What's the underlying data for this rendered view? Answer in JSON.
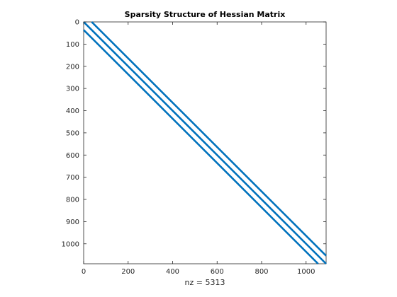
{
  "chart_data": {
    "type": "scatter",
    "title": "Sparsity Structure of Hessian Matrix",
    "xlabel": "nz = 5313",
    "ylabel": "",
    "xlim": [
      0,
      1090
    ],
    "ylim": [
      1090,
      0
    ],
    "y_axis_reversed": true,
    "x_ticks": [
      0,
      200,
      400,
      600,
      800,
      1000
    ],
    "y_ticks": [
      0,
      100,
      200,
      300,
      400,
      500,
      600,
      700,
      800,
      900,
      1000
    ],
    "x_tick_labels": [
      "0",
      "200",
      "400",
      "600",
      "800",
      "1000"
    ],
    "y_tick_labels": [
      "0",
      "100",
      "200",
      "300",
      "400",
      "500",
      "600",
      "700",
      "800",
      "900",
      "1000"
    ],
    "matrix_size": 1090,
    "nonzero_count": 5313,
    "diagonal_offsets": [
      -36,
      0,
      36
    ],
    "grid": false,
    "marker_color": "#0072BD"
  }
}
